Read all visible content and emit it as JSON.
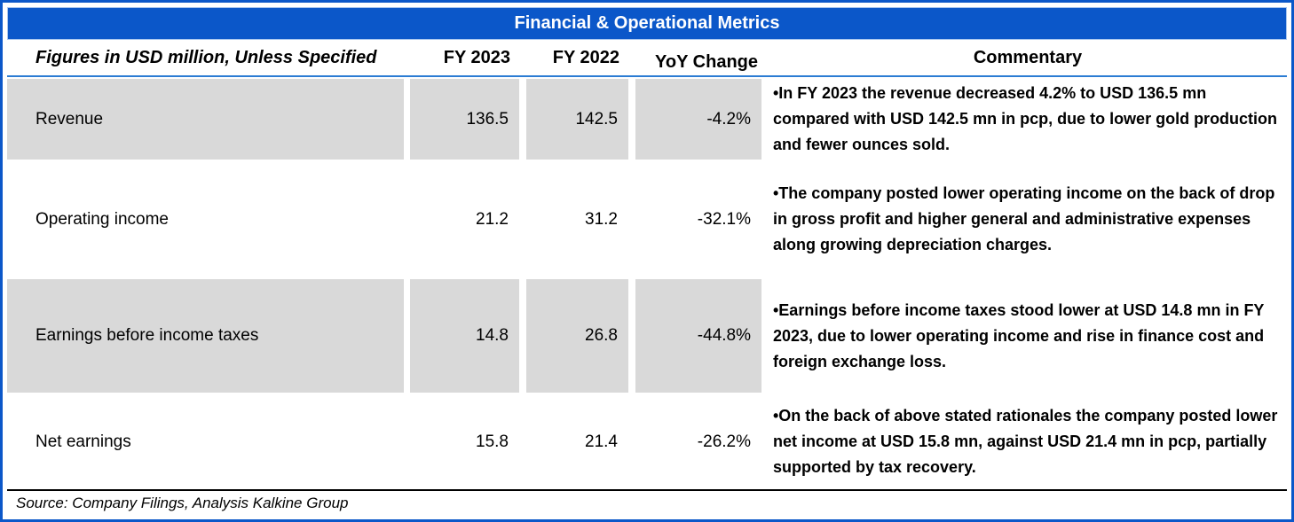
{
  "title": "Financial & Operational Metrics",
  "header": {
    "label_col": "Figures in USD million, Unless Specified",
    "col_fy2023": "FY 2023",
    "col_fy2022": "FY 2022",
    "col_yoy": "YoY Change",
    "col_commentary": "Commentary"
  },
  "rows": [
    {
      "metric": "Revenue",
      "fy2023": "136.5",
      "fy2022": "142.5",
      "yoy": "-4.2%",
      "commentary": "•In FY 2023 the revenue decreased 4.2% to USD 136.5 mn compared with USD 142.5 mn in pcp, due to lower gold production and fewer ounces sold."
    },
    {
      "metric": "Operating income",
      "fy2023": "21.2",
      "fy2022": "31.2",
      "yoy": "-32.1%",
      "commentary": "•The company posted lower operating income on the back of drop in gross profit and higher general and administrative expenses along growing depreciation charges."
    },
    {
      "metric": "Earnings before income taxes",
      "fy2023": "14.8",
      "fy2022": "26.8",
      "yoy": "-44.8%",
      "commentary": "•Earnings before income taxes stood lower at USD 14.8 mn in FY 2023, due to lower operating income and rise in finance cost and foreign exchange loss."
    },
    {
      "metric": "Net earnings",
      "fy2023": "15.8",
      "fy2022": "21.4",
      "yoy": "-26.2%",
      "commentary": "•On the back of above stated rationales the company posted lower net income at USD 15.8 mn, against USD 21.4 mn in pcp, partially supported by tax recovery."
    }
  ],
  "footer": {
    "source": "Source: Company Filings, Analysis Kalkine Group"
  },
  "colors": {
    "accent_blue": "#0b57c9",
    "row_shade": "#d9d9d9"
  },
  "chart_data": {
    "type": "table",
    "title": "Financial & Operational Metrics",
    "units_note": "Figures in USD million, Unless Specified",
    "columns": [
      "Metric",
      "FY 2023",
      "FY 2022",
      "YoY Change",
      "Commentary"
    ],
    "rows": [
      [
        "Revenue",
        136.5,
        142.5,
        "-4.2%",
        "In FY 2023 the revenue decreased 4.2% to USD 136.5 mn compared with USD 142.5 mn in pcp, due to lower gold production and fewer ounces sold."
      ],
      [
        "Operating income",
        21.2,
        31.2,
        "-32.1%",
        "The company posted lower operating income on the back of drop in gross profit and higher general and administrative expenses along growing depreciation charges."
      ],
      [
        "Earnings before income taxes",
        14.8,
        26.8,
        "-44.8%",
        "Earnings before income taxes stood lower at USD 14.8 mn in FY 2023, due to lower operating income and rise in finance cost and foreign exchange loss."
      ],
      [
        "Net earnings",
        15.8,
        21.4,
        "-26.2%",
        "On the back of above stated rationales the company posted lower net income at USD 15.8 mn, against USD 21.4 mn in pcp, partially supported by tax recovery."
      ]
    ],
    "row_shading": [
      true,
      false,
      true,
      false
    ],
    "source": "Source: Company Filings, Analysis Kalkine Group"
  }
}
